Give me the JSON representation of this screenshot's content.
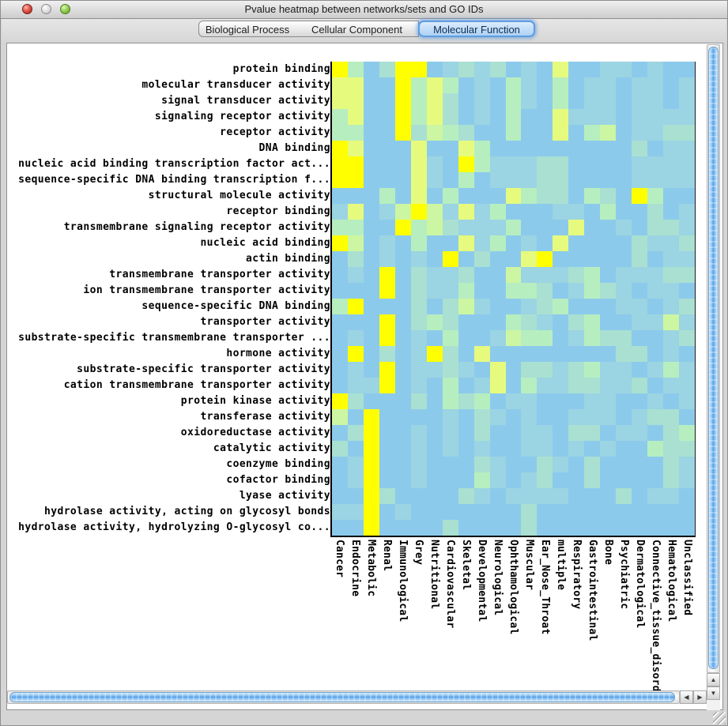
{
  "window": {
    "title": "Pvalue heatmap between networks/sets and GO IDs"
  },
  "tabs": [
    {
      "label": "Biological Process",
      "selected": false
    },
    {
      "label": "Cellular Component",
      "selected": false
    },
    {
      "label": "Molecular Function",
      "selected": true
    }
  ],
  "scrollbars": {
    "up_arrow": "▲",
    "down_arrow": "▼",
    "left_arrow": "◀",
    "right_arrow": "▶"
  },
  "chart_data": {
    "type": "heatmap",
    "title": "Pvalue heatmap between networks/sets and GO IDs (Molecular Function tab)",
    "rows": [
      "protein binding",
      "molecular transducer activity",
      "signal transducer activity",
      "signaling receptor activity",
      "receptor activity",
      "DNA binding",
      "nucleic acid binding transcription factor act...",
      "sequence-specific DNA binding transcription f...",
      "structural molecule activity",
      "receptor binding",
      "transmembrane signaling receptor activity",
      "nucleic acid binding",
      "actin binding",
      "transmembrane transporter activity",
      "ion transmembrane transporter activity",
      "sequence-specific DNA binding",
      "transporter activity",
      "substrate-specific transmembrane transporter ...",
      "hormone activity",
      "substrate-specific transporter activity",
      "cation transmembrane transporter activity",
      "protein kinase activity",
      "transferase activity",
      "oxidoreductase activity",
      "catalytic activity",
      "coenzyme binding",
      "cofactor binding",
      "lyase activity",
      "hydrolase activity, acting on glycosyl bonds",
      "hydrolase activity, hydrolyzing O-glycosyl co..."
    ],
    "columns": [
      "Cancer",
      "Endocrine",
      "Metabolic",
      "Renal",
      "Immunological",
      "Grey",
      "Nutritional",
      "Cardiovascular",
      "Skeletal",
      "Developmental",
      "Neurological",
      "Ophthamological",
      "Muscular",
      "Ear_Nose_Throat",
      "multiple",
      "Respiratory",
      "Gastrointestinal",
      "Bone",
      "Psychiatric",
      "Dermatological",
      "Connective_tissue_disorder",
      "Hematological",
      "Unclassified"
    ],
    "palette": {
      "0": "#8ccaec",
      "1": "#9bd4e2",
      "2": "#a9e0d2",
      "3": "#b7eec0",
      "4": "#cdf6a2",
      "5": "#e6fb7e",
      "6": "#ffff00"
    },
    "palette_note": "intensity bins 0 (low significance, blue) to 6 (high significance, yellow)",
    "grid": [
      "63026601212010500110100",
      "55006353010310301101101",
      "55006352010310301101101",
      "35006352010300511101111",
      "33006243200300503401122",
      "65000500530000000002011",
      "66000510631112200001111",
      "66000510301112200001111",
      "00030503000532203206300",
      "15014641513000110300201",
      "33006342111300050010221",
      "64010300513010500002112",
      "02010106020056000002011",
      "01060211200411123011122",
      "00060211300332013210110",
      "36000202410012300011012",
      "00060232000321023001141",
      "01060103001433013220012",
      "06020162050000000022010",
      "01060112105022123110131",
      "01160103015031122112011",
      "62000203230110001100101",
      "40600001021010011101220",
      "02600101020011022011023",
      "20600101010011010100322",
      "01600100021002102000021",
      "01600100031012002000021",
      "00620000210111100020110",
      "11601000000020000000000",
      "00600002000020000000000"
    ]
  }
}
